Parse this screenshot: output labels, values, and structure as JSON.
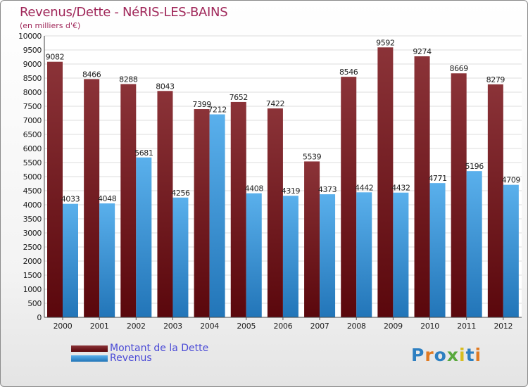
{
  "header": {
    "title": "Revenus/Dette - NéRIS-LES-BAINS",
    "subtitle": "(en milliers d'€)"
  },
  "legend": {
    "dette_label": "Montant de la Dette",
    "revenus_label": "Revenus"
  },
  "logo": {
    "text": "Proxiti"
  },
  "colors": {
    "dette": "#6a0f14",
    "dette_light": "#8b3338",
    "revenus": "#2b86c9",
    "revenus_light": "#5ab0ec",
    "title": "#a0285a",
    "legend_text": "#4a4ad6"
  },
  "chart_data": {
    "type": "bar",
    "title": "Revenus/Dette - NéRIS-LES-BAINS",
    "subtitle": "(en milliers d'€)",
    "xlabel": "",
    "ylabel": "",
    "categories": [
      "2000",
      "2001",
      "2002",
      "2003",
      "2004",
      "2005",
      "2006",
      "2007",
      "2008",
      "2009",
      "2010",
      "2011",
      "2012"
    ],
    "series": [
      {
        "name": "Montant de la Dette",
        "values": [
          9082,
          8466,
          8288,
          8043,
          7399,
          7652,
          7422,
          5539,
          8546,
          9592,
          9274,
          8669,
          8279
        ]
      },
      {
        "name": "Revenus",
        "values": [
          4033,
          4048,
          5681,
          4256,
          7212,
          4408,
          4319,
          4373,
          4442,
          4432,
          4771,
          5196,
          4709
        ]
      }
    ],
    "ylim": [
      0,
      10000
    ],
    "ytick_step": 500,
    "grid": true,
    "legend_position": "bottom-left"
  }
}
